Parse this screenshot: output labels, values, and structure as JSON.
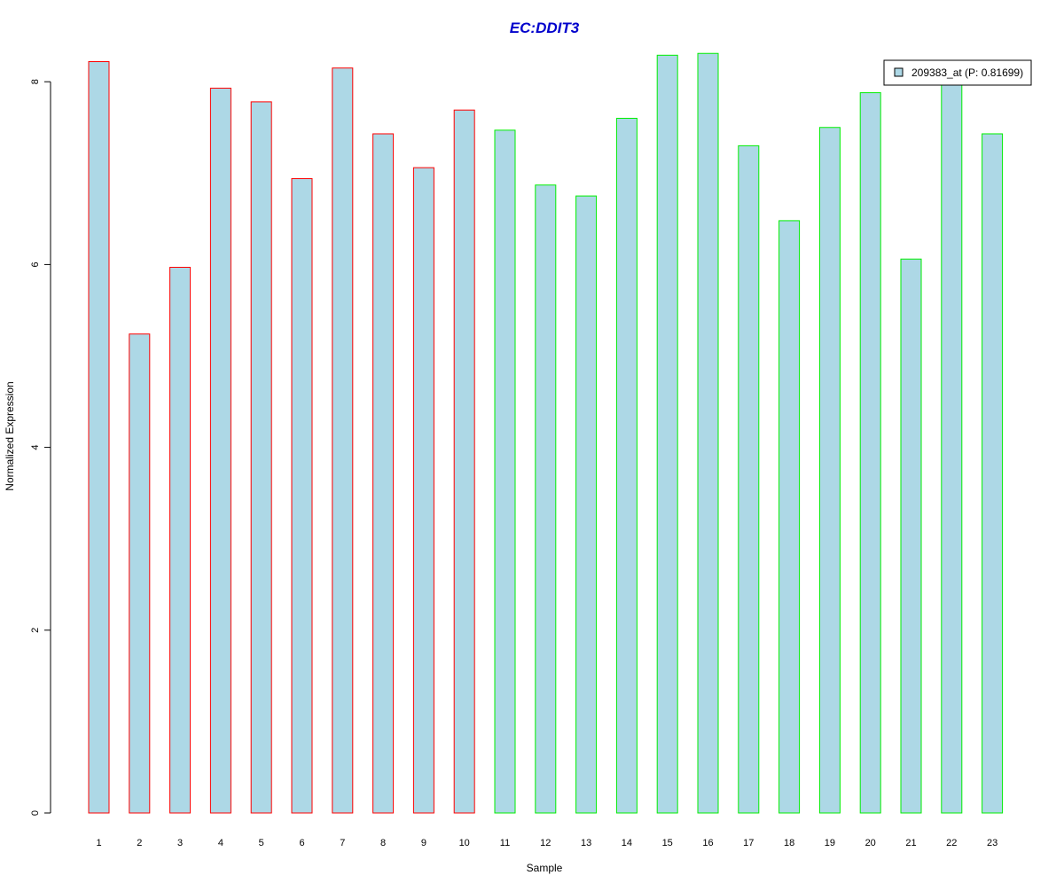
{
  "chart_data": {
    "type": "bar",
    "title": "EC:DDIT3",
    "xlabel": "Sample",
    "ylabel": "Normalized Expression",
    "categories": [
      "1",
      "2",
      "3",
      "4",
      "5",
      "6",
      "7",
      "8",
      "9",
      "10",
      "11",
      "12",
      "13",
      "14",
      "15",
      "16",
      "17",
      "18",
      "19",
      "20",
      "21",
      "22",
      "23"
    ],
    "series": [
      {
        "name": "209383_at (P: 0.81699)",
        "values": [
          8.22,
          5.24,
          5.97,
          7.93,
          7.78,
          6.94,
          8.15,
          7.43,
          7.06,
          7.69,
          7.47,
          6.87,
          6.75,
          7.6,
          8.29,
          8.31,
          7.3,
          6.48,
          7.5,
          7.88,
          6.06,
          8.02,
          7.43
        ]
      }
    ],
    "group_edge_colors": [
      "#ff0000",
      "#ff0000",
      "#ff0000",
      "#ff0000",
      "#ff0000",
      "#ff0000",
      "#ff0000",
      "#ff0000",
      "#ff0000",
      "#ff0000",
      "#00ee00",
      "#00ee00",
      "#00ee00",
      "#00ee00",
      "#00ee00",
      "#00ee00",
      "#00ee00",
      "#00ee00",
      "#00ee00",
      "#00ee00",
      "#00ee00",
      "#00ee00",
      "#00ee00"
    ],
    "yticks": [
      0,
      2,
      4,
      6,
      8
    ],
    "ylim": [
      0,
      8.35
    ],
    "grid": false,
    "legend_position": "top-right",
    "colors": {
      "bar_fill": "#add8e6",
      "title": "#0000cc",
      "axis": "#000000",
      "legend_border": "#000000",
      "background": "#ffffff"
    }
  }
}
